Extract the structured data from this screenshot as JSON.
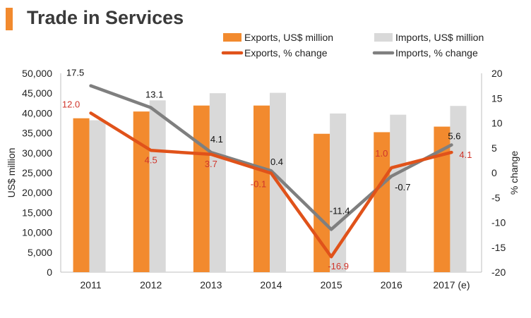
{
  "title": "Trade in Services",
  "colors": {
    "accent": "#f28a2e",
    "exports_bar": "#f28a2e",
    "imports_bar": "#d9d9d9",
    "exports_line": "#e0521a",
    "imports_line": "#7f7f7f",
    "exports_label": "#d0352b",
    "imports_label": "#111111"
  },
  "chart_data": {
    "type": "bar",
    "title": "Trade in Services",
    "categories": [
      "2011",
      "2012",
      "2013",
      "2014",
      "2015",
      "2016",
      "2017 (e)"
    ],
    "ylabel": "US$ million",
    "y2label": "% change",
    "ylim": [
      0,
      50000
    ],
    "y2lim": [
      -20,
      20
    ],
    "yticks": [
      "0",
      "5,000",
      "10,000",
      "15,000",
      "20,000",
      "25,000",
      "30,000",
      "35,000",
      "40,000",
      "45,000",
      "50,000"
    ],
    "y2ticks": [
      "-20",
      "-15",
      "-10",
      "-5",
      "0",
      "5",
      "10",
      "15",
      "20"
    ],
    "legend_position": "top",
    "series": [
      {
        "name": "Exports, US$ million",
        "type": "bar",
        "axis": "left",
        "values": [
          38700,
          40400,
          41900,
          41900,
          34800,
          35200,
          36600
        ]
      },
      {
        "name": "Imports, US$ million",
        "type": "bar",
        "axis": "left",
        "values": [
          38200,
          43200,
          45000,
          45100,
          39900,
          39600,
          41800
        ]
      },
      {
        "name": "Exports, % change",
        "type": "line",
        "axis": "right",
        "values": [
          12.0,
          4.5,
          3.7,
          -0.1,
          -16.9,
          1.0,
          4.1
        ],
        "labels": [
          "12.0",
          "4.5",
          "3.7",
          "-0.1",
          "-16.9",
          "1.0",
          "4.1"
        ]
      },
      {
        "name": "Imports, % change",
        "type": "line",
        "axis": "right",
        "values": [
          17.5,
          13.1,
          4.1,
          0.4,
          -11.4,
          -0.7,
          5.6
        ],
        "labels": [
          "17.5",
          "13.1",
          "4.1",
          "0.4",
          "-11.4",
          "-0.7",
          "5.6"
        ]
      }
    ]
  }
}
